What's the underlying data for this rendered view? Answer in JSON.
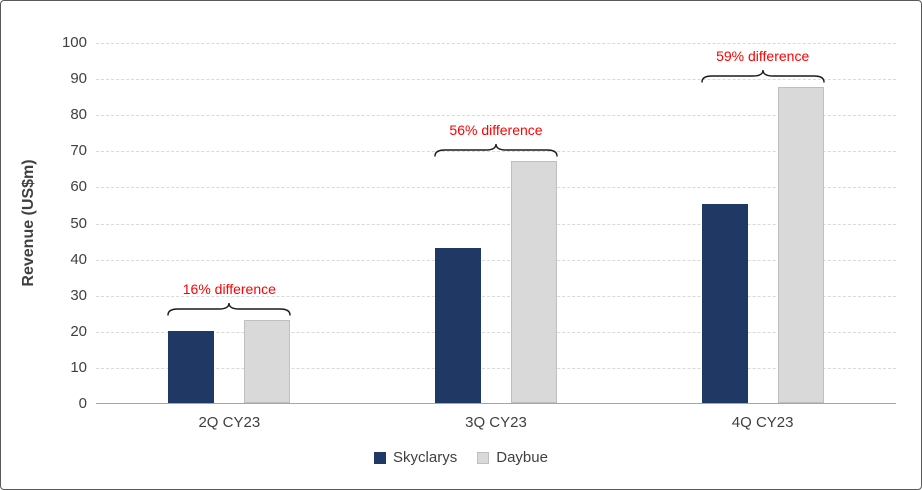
{
  "chart_data": {
    "type": "bar",
    "title": "",
    "ylabel": "Revenue (US$m)",
    "xlabel": "",
    "ylim": [
      0,
      100
    ],
    "ytick_step": 10,
    "grid": "horizontal-dashed",
    "legend_position": "bottom",
    "categories": [
      "2Q CY23",
      "3Q CY23",
      "4Q CY23"
    ],
    "series": [
      {
        "name": "Skyclarys",
        "color": "#1f3864",
        "values": [
          20,
          43,
          55
        ]
      },
      {
        "name": "Daybue",
        "color": "#d9d9d9",
        "values": [
          23,
          67,
          87.5
        ]
      }
    ],
    "annotations": [
      {
        "category": "2Q CY23",
        "label": "16% difference"
      },
      {
        "category": "3Q CY23",
        "label": "56% difference"
      },
      {
        "category": "4Q CY23",
        "label": "59% difference"
      }
    ],
    "annotation_color": "#ff0000",
    "brace_color": "#1a1a1a"
  }
}
